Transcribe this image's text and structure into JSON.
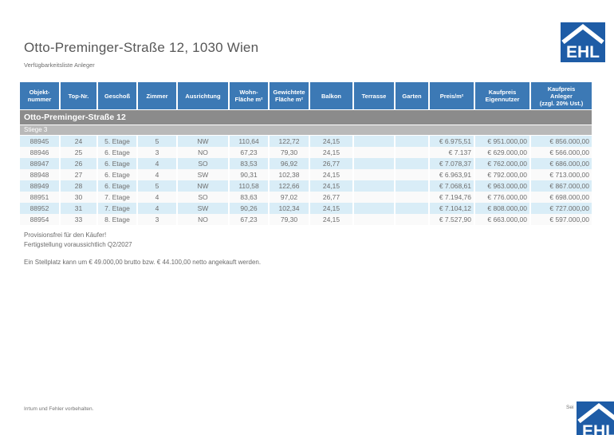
{
  "header": {
    "title": "Otto-Preminger-Straße 12, 1030 Wien",
    "subtitle": "Verfügbarkeitsliste Anleger",
    "logo_text": "EHL"
  },
  "colors": {
    "table_header_blue": "#3c79b5",
    "logo_blue": "#1e5ca6",
    "group_bar_gray": "#8b8b8b",
    "subgroup_bar_gray": "#b9b9b9",
    "row_highlight_blue": "#d9edf7",
    "row_alternate": "#fafafa",
    "body_text_gray": "#6e6e6e"
  },
  "table": {
    "columns": [
      "Objekt-\nnummer",
      "Top-Nr.",
      "Geschoß",
      "Zimmer",
      "Ausrichtung",
      "Wohn-\nFläche m²",
      "Gewichtete\nFläche m²",
      "Balkon",
      "Terrasse",
      "Garten",
      "Preis/m²",
      "Kaufpreis\nEigennutzer",
      "Kaufpreis\nAnleger\n(zzgl. 20% Ust.)"
    ],
    "group_title": "Otto-Preminger-Straße 12",
    "subgroup_title": "Stiege 3",
    "rows": [
      [
        "88945",
        "24",
        "5. Etage",
        "5",
        "NW",
        "110,64",
        "122,72",
        "24,15",
        "",
        "",
        "€ 6.975,51",
        "€ 951.000,00",
        "€ 856.000,00"
      ],
      [
        "88946",
        "25",
        "6. Etage",
        "3",
        "NO",
        "67,23",
        "79,30",
        "24,15",
        "",
        "",
        "€ 7.137",
        "€ 629.000,00",
        "€ 566.000,00"
      ],
      [
        "88947",
        "26",
        "6. Etage",
        "4",
        "SO",
        "83,53",
        "96,92",
        "26,77",
        "",
        "",
        "€ 7.078,37",
        "€ 762.000,00",
        "€ 686.000,00"
      ],
      [
        "88948",
        "27",
        "6. Etage",
        "4",
        "SW",
        "90,31",
        "102,38",
        "24,15",
        "",
        "",
        "€ 6.963,91",
        "€ 792.000,00",
        "€ 713.000,00"
      ],
      [
        "88949",
        "28",
        "6. Etage",
        "5",
        "NW",
        "110,58",
        "122,66",
        "24,15",
        "",
        "",
        "€ 7.068,61",
        "€ 963.000,00",
        "€ 867.000,00"
      ],
      [
        "88951",
        "30",
        "7. Etage",
        "4",
        "SO",
        "83,63",
        "97,02",
        "26,77",
        "",
        "",
        "€ 7.194,76",
        "€ 776.000,00",
        "€ 698.000,00"
      ],
      [
        "88952",
        "31",
        "7. Etage",
        "4",
        "SW",
        "90,26",
        "102,34",
        "24,15",
        "",
        "",
        "€ 7.104,12",
        "€ 808.000,00",
        "€ 727.000,00"
      ],
      [
        "88954",
        "33",
        "8. Etage",
        "3",
        "NO",
        "67,23",
        "79,30",
        "24,15",
        "",
        "",
        "€ 7.527,90",
        "€ 663.000,00",
        "€ 597.000,00"
      ]
    ]
  },
  "notes": {
    "line1": "Provisionsfrei für den Käufer!",
    "line2": "Fertigstellung voraussichtlich Q2/2027",
    "line3": "Ein Stellplatz kann um € 49.000,00 brutto bzw. € 44.100,00 netto angekauft werden."
  },
  "footer": {
    "disclaimer": "Irrtum und Fehler vorbehalten.",
    "page_label": "Sei"
  }
}
